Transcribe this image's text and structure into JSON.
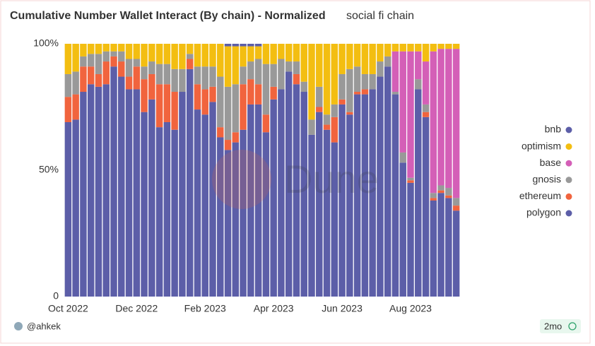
{
  "chart_data": {
    "type": "stacked_bar",
    "title": "Cumulative Number Wallet Interact (By chain) - Normalized",
    "subtitle": "social fi chain",
    "categories": [
      null,
      null,
      null,
      null,
      null,
      null,
      null,
      null,
      null,
      null,
      null,
      null,
      null,
      null,
      null,
      null,
      null,
      null,
      null,
      null,
      null,
      null,
      null,
      null,
      null,
      null,
      null,
      null,
      null,
      null,
      null,
      null,
      null,
      null,
      null,
      null,
      null,
      null,
      null,
      null,
      null,
      null,
      null,
      null,
      null,
      null,
      null,
      null,
      null,
      null,
      null,
      null
    ],
    "xlim": [
      -0.5,
      51.5
    ],
    "xticks": [
      {
        "value": 0,
        "label": "Oct 2022"
      },
      {
        "value": 9,
        "label": "Dec 2022"
      },
      {
        "value": 18,
        "label": "Feb 2023"
      },
      {
        "value": 27,
        "label": "Apr 2023"
      },
      {
        "value": 36,
        "label": "Jun 2023"
      },
      {
        "value": 45,
        "label": "Aug 2023"
      }
    ],
    "ylim": [
      0,
      100
    ],
    "yticks": [
      0,
      {
        "value": 50,
        "label": "50%"
      },
      {
        "value": 100,
        "label": "100%"
      }
    ],
    "series": [
      {
        "name": "polygon",
        "color": "#5c5ea8",
        "values": [
          69,
          70,
          81,
          84,
          83,
          84,
          91,
          87,
          82,
          82,
          73,
          78,
          67,
          69,
          66,
          81,
          90,
          74,
          72,
          77,
          63,
          58,
          61,
          66,
          76,
          76,
          65,
          78,
          82,
          89,
          84,
          81,
          64,
          73,
          66,
          61,
          76,
          72,
          80,
          80,
          82,
          87,
          91,
          80,
          53,
          45,
          82,
          71,
          38,
          41,
          39,
          34
        ]
      },
      {
        "name": "ethereum",
        "color": "#f1643e",
        "values": [
          10,
          10,
          10,
          7,
          5,
          9,
          4,
          6,
          5,
          9,
          13,
          10,
          17,
          15,
          15,
          0,
          4,
          10,
          10,
          6,
          4,
          4,
          4,
          18,
          10,
          8,
          7,
          5,
          0,
          0,
          4,
          0,
          0,
          2,
          2,
          10,
          2,
          1,
          1,
          2,
          0,
          0,
          0,
          0,
          0,
          1,
          0,
          2,
          1,
          1,
          1,
          2
        ]
      },
      {
        "name": "gnosis",
        "color": "#999999",
        "values": [
          9,
          9,
          4,
          5,
          8,
          4,
          2,
          4,
          7,
          3,
          5,
          5,
          8,
          8,
          9,
          9,
          2,
          7,
          9,
          8,
          20,
          21,
          19,
          7,
          7,
          10,
          20,
          9,
          12,
          4,
          5,
          4,
          6,
          8,
          4,
          5,
          10,
          17,
          10,
          6,
          6,
          6,
          4,
          1,
          4,
          1,
          4,
          3,
          2,
          2,
          3,
          3
        ]
      },
      {
        "name": "base",
        "color": "#d45fb7",
        "values": [
          0,
          0,
          0,
          0,
          0,
          0,
          0,
          0,
          0,
          0,
          0,
          0,
          0,
          0,
          0,
          0,
          0,
          0,
          0,
          0,
          0,
          0,
          0,
          0,
          0,
          0,
          0,
          0,
          0,
          0,
          0,
          0,
          0,
          0,
          0,
          0,
          0,
          0,
          0,
          0,
          0,
          0,
          0,
          16,
          40,
          50,
          11,
          17,
          56,
          54,
          55,
          59
        ]
      },
      {
        "name": "optimism",
        "color": "#f3be11",
        "values": [
          12,
          11,
          5,
          4,
          4,
          3,
          3,
          3,
          6,
          6,
          9,
          7,
          8,
          8,
          10,
          10,
          4,
          9,
          9,
          9,
          13,
          16,
          15,
          8,
          6,
          5,
          8,
          8,
          6,
          7,
          7,
          15,
          30,
          17,
          28,
          24,
          12,
          10,
          9,
          12,
          12,
          7,
          5,
          3,
          3,
          3,
          3,
          7,
          3,
          2,
          2,
          2
        ]
      },
      {
        "name": "bnb",
        "color": "#5c5ea8",
        "values": [
          0,
          0,
          0,
          0,
          0,
          0,
          0,
          0,
          0,
          0,
          0,
          0,
          0,
          0,
          0,
          0,
          0,
          0,
          0,
          0,
          0,
          1,
          1,
          1,
          1,
          1,
          0,
          0,
          0,
          0,
          0,
          0,
          0,
          0,
          0,
          0,
          0,
          0,
          0,
          0,
          0,
          0,
          0,
          0,
          0,
          0,
          0,
          0,
          0,
          0,
          0,
          0
        ]
      }
    ],
    "grid": false
  },
  "watermark": "Dune",
  "author": "@ahkek",
  "age": "2mo"
}
